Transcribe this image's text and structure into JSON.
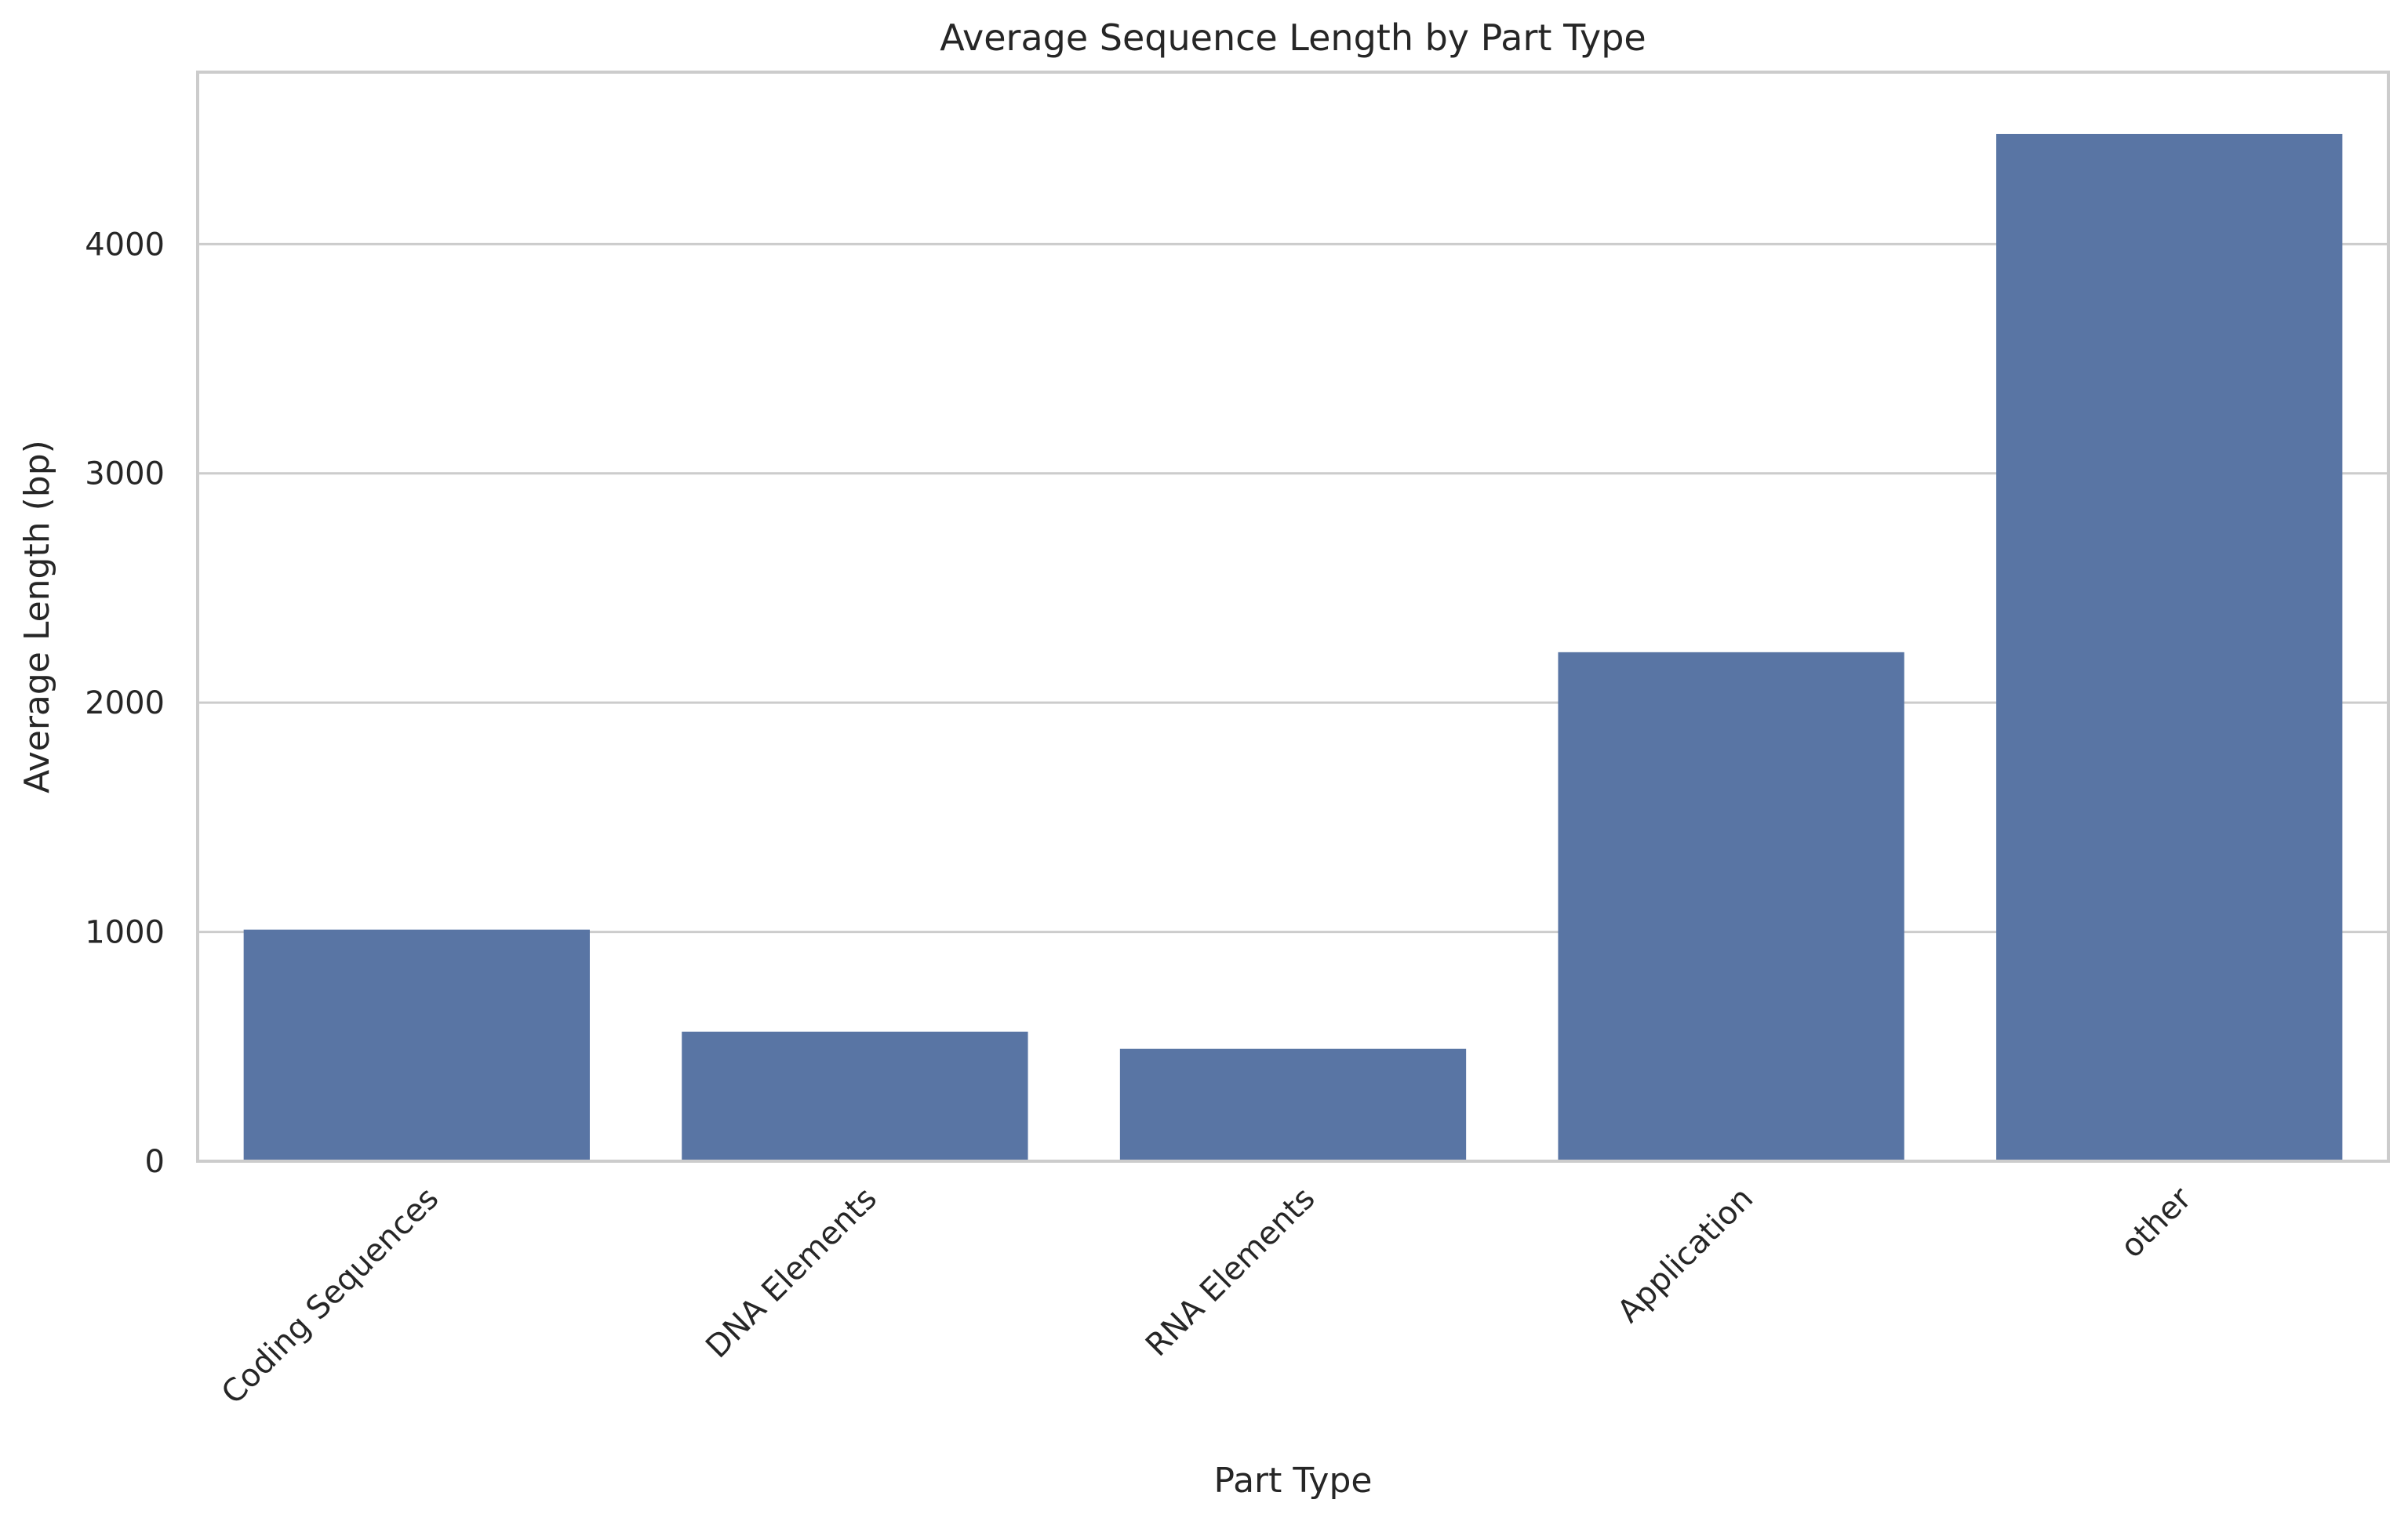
{
  "chart_data": {
    "type": "bar",
    "title": "Average Sequence Length by Part Type",
    "xlabel": "Part Type",
    "ylabel": "Average Length (bp)",
    "categories": [
      "Coding Sequences",
      "DNA Elements",
      "RNA Elements",
      "Application",
      "other"
    ],
    "values": [
      1010,
      565,
      490,
      2220,
      4480
    ],
    "ylim": [
      0,
      4750
    ],
    "yticks": [
      0,
      1000,
      2000,
      3000,
      4000
    ],
    "ytick_labels": [
      "0",
      "1000",
      "2000",
      "3000",
      "4000"
    ],
    "grid": "horizontal",
    "colors": {
      "bar": "#5975a4",
      "grid": "#cccccc",
      "text": "#262626"
    }
  }
}
